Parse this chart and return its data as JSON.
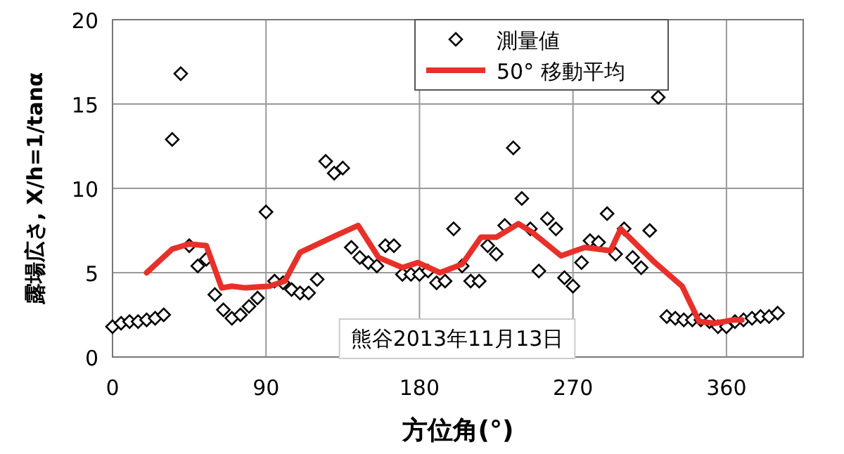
{
  "chart_data": {
    "type": "scatter",
    "xlabel": "方位角(°)",
    "ylabel": "露場広さ, X/h=1/tanα",
    "xlim": [
      0,
      405
    ],
    "xticks": [
      0,
      90,
      180,
      270,
      360
    ],
    "ylim": [
      0,
      20
    ],
    "yticks": [
      0,
      5,
      10,
      15,
      20
    ],
    "grid": true,
    "legend": "top",
    "annotations": [
      "熊谷2013年11月13日"
    ],
    "series": [
      {
        "name": "測量値",
        "marker": "diamond",
        "color": "#000000",
        "x": [
          0,
          5,
          10,
          15,
          20,
          25,
          30,
          35,
          40,
          45,
          50,
          55,
          60,
          65,
          70,
          75,
          80,
          85,
          90,
          95,
          100,
          105,
          110,
          115,
          120,
          125,
          130,
          135,
          140,
          145,
          150,
          155,
          160,
          165,
          170,
          175,
          180,
          185,
          190,
          195,
          200,
          205,
          210,
          215,
          220,
          225,
          230,
          235,
          240,
          245,
          250,
          255,
          260,
          265,
          270,
          275,
          280,
          285,
          290,
          295,
          300,
          305,
          310,
          315,
          320,
          325,
          330,
          335,
          340,
          345,
          350,
          355,
          360,
          365,
          370,
          375,
          380,
          385,
          390
        ],
        "values": [
          1.8,
          2.0,
          2.1,
          2.1,
          2.2,
          2.3,
          2.5,
          12.9,
          16.8,
          6.6,
          5.4,
          5.8,
          3.7,
          2.8,
          2.3,
          2.5,
          3.0,
          3.5,
          8.6,
          4.5,
          4.4,
          4.0,
          3.8,
          3.8,
          4.6,
          11.6,
          10.9,
          11.2,
          6.5,
          5.9,
          5.6,
          5.4,
          6.6,
          6.6,
          4.9,
          4.9,
          4.9,
          5.1,
          4.4,
          4.5,
          7.6,
          5.4,
          4.5,
          4.5,
          6.6,
          6.1,
          7.8,
          12.4,
          9.4,
          7.6,
          5.1,
          8.2,
          7.6,
          4.7,
          4.2,
          5.6,
          6.9,
          6.8,
          8.5,
          6.1,
          7.6,
          5.9,
          5.3,
          7.5,
          15.4,
          2.4,
          2.3,
          2.2,
          2.2,
          2.2,
          2.1,
          1.8,
          1.8,
          2.1,
          2.2,
          2.3,
          2.4,
          2.4,
          2.6
        ]
      },
      {
        "name": "50° 移動平均",
        "type": "line",
        "color": "#e8302a",
        "x": [
          20,
          35,
          45,
          55,
          64,
          70,
          78,
          92,
          101,
          110,
          131,
          144,
          156,
          170,
          179,
          192,
          205,
          216,
          225,
          238,
          246,
          263,
          277,
          292,
          298,
          318,
          334,
          344,
          353,
          364,
          369
        ],
        "values": [
          5.0,
          6.4,
          6.7,
          6.6,
          4.1,
          4.2,
          4.1,
          4.2,
          4.5,
          6.2,
          7.2,
          7.8,
          5.9,
          5.3,
          5.6,
          5.0,
          5.5,
          7.1,
          7.1,
          7.9,
          7.4,
          6.0,
          6.5,
          6.3,
          7.6,
          5.6,
          4.2,
          2.1,
          2.0,
          2.2,
          2.2
        ]
      }
    ]
  }
}
